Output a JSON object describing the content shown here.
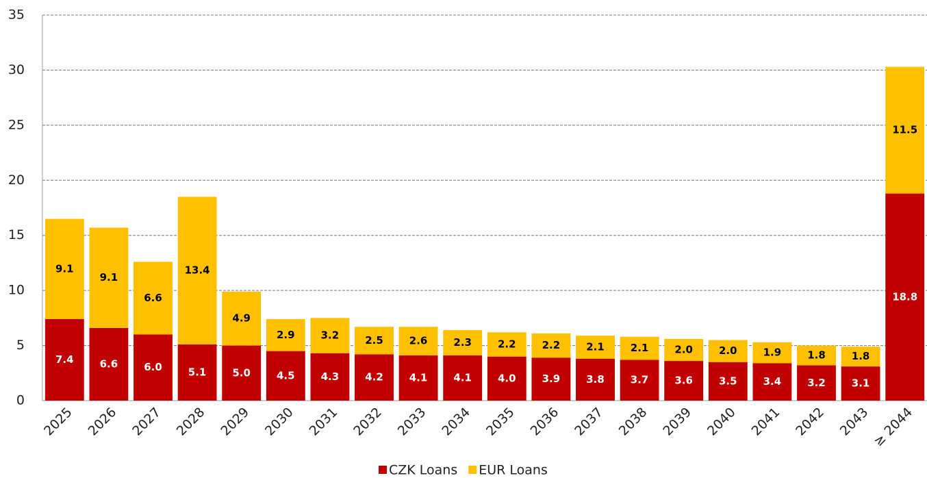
{
  "chart_data": {
    "type": "stacked-bar",
    "categories": [
      "2025",
      "2026",
      "2027",
      "2028",
      "2029",
      "2030",
      "2031",
      "2032",
      "2033",
      "2034",
      "2035",
      "2036",
      "2037",
      "2038",
      "2039",
      "2040",
      "2041",
      "2042",
      "2043",
      "≥ 2044"
    ],
    "series": [
      {
        "name": "CZK Loans",
        "color": "#c00000",
        "values": [
          7.4,
          6.6,
          6.0,
          5.1,
          5.0,
          4.5,
          4.3,
          4.2,
          4.1,
          4.1,
          4.0,
          3.9,
          3.8,
          3.7,
          3.6,
          3.5,
          3.4,
          3.2,
          3.1,
          18.8
        ],
        "value_labels": [
          "7.4",
          "6.6",
          "6.0",
          "5.1",
          "5.0",
          "4.5",
          "4.3",
          "4.2",
          "4.1",
          "4.1",
          "4.0",
          "3.9",
          "3.8",
          "3.7",
          "3.6",
          "3.5",
          "3.4",
          "3.2",
          "3.1",
          "18.8"
        ]
      },
      {
        "name": "EUR Loans",
        "color": "#ffc000",
        "values": [
          9.1,
          9.1,
          6.6,
          13.4,
          4.9,
          2.9,
          3.2,
          2.5,
          2.6,
          2.3,
          2.2,
          2.2,
          2.1,
          2.1,
          2.0,
          2.0,
          1.9,
          1.8,
          1.8,
          11.5
        ],
        "value_labels": [
          "9.1",
          "9.1",
          "6.6",
          "13.4",
          "4.9",
          "2.9",
          "3.2",
          "2.5",
          "2.6",
          "2.3",
          "2.2",
          "2.2",
          "2.1",
          "2.1",
          "2.0",
          "2.0",
          "1.9",
          "1.8",
          "1.8",
          "11.5"
        ]
      }
    ],
    "ylim": [
      0,
      35
    ],
    "yticks": [
      0,
      5,
      10,
      15,
      20,
      25,
      30,
      35
    ],
    "grid": true,
    "legend": "bottom"
  }
}
